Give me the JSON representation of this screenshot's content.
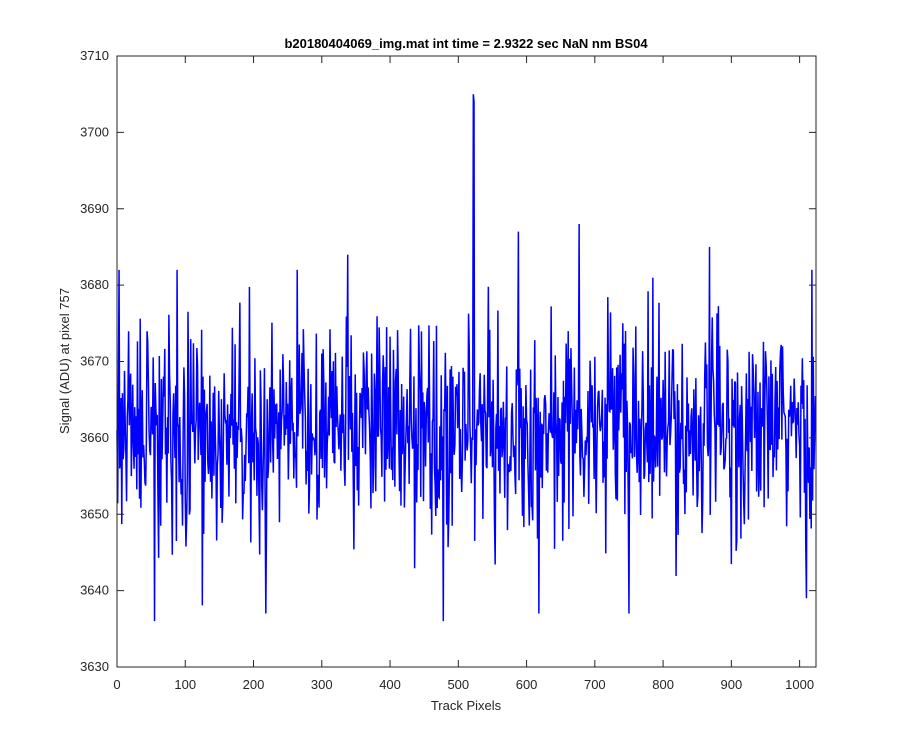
{
  "chart_data": {
    "type": "line",
    "title": "b20180404069_img.mat int time = 2.9322 sec  NaN nm BS04",
    "xlabel": "Track Pixels",
    "ylabel": "Signal (ADU) at pixel 757",
    "xlim": [
      0,
      1024
    ],
    "ylim": [
      3630,
      3710
    ],
    "xticks": [
      "0",
      "100",
      "200",
      "300",
      "400",
      "500",
      "600",
      "700",
      "800",
      "900",
      "1000"
    ],
    "yticks": [
      "3630",
      "3640",
      "3650",
      "3660",
      "3670",
      "3680",
      "3690",
      "3700",
      "3710"
    ],
    "grid": false,
    "series": [
      {
        "color": "#0000ff",
        "noise": {
          "n_points": 1024,
          "mean": 3661,
          "std": 6.5,
          "min": 3636,
          "max": 3705
        },
        "notable_points": [
          {
            "x": 3,
            "y": 3682
          },
          {
            "x": 55,
            "y": 3636
          },
          {
            "x": 88,
            "y": 3682
          },
          {
            "x": 218,
            "y": 3637
          },
          {
            "x": 264,
            "y": 3682
          },
          {
            "x": 338,
            "y": 3684
          },
          {
            "x": 478,
            "y": 3636
          },
          {
            "x": 522,
            "y": 3705
          },
          {
            "x": 523,
            "y": 3704
          },
          {
            "x": 588,
            "y": 3687
          },
          {
            "x": 618,
            "y": 3637
          },
          {
            "x": 677,
            "y": 3688
          },
          {
            "x": 750,
            "y": 3637
          },
          {
            "x": 868,
            "y": 3685
          },
          {
            "x": 1010,
            "y": 3639
          },
          {
            "x": 1018,
            "y": 3682
          }
        ]
      }
    ]
  }
}
